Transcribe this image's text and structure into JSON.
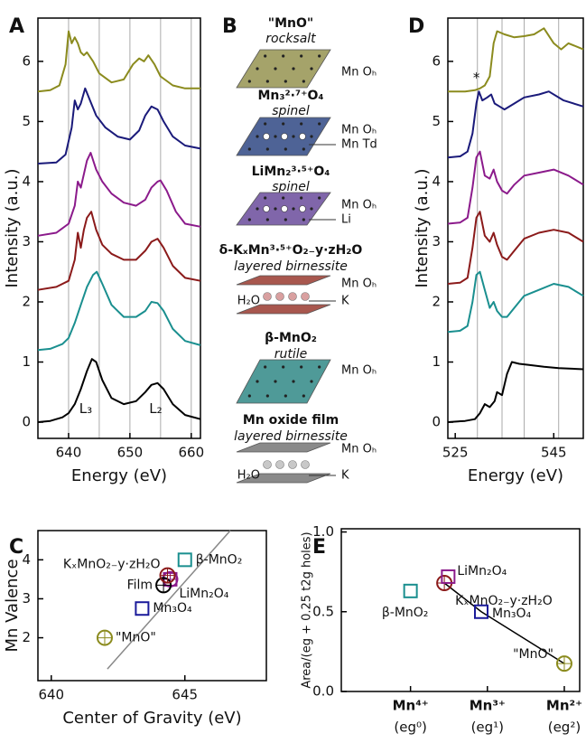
{
  "panel_labels": [
    "A",
    "B",
    "C",
    "D",
    "E"
  ],
  "chart_data": [
    {
      "type": "line",
      "xlabel": "Energy (eV)",
      "ylabel": "Intensity (a.u.)",
      "xlim": [
        635,
        661.5
      ],
      "ylim": [
        -0.27,
        6.72
      ],
      "xticks": [
        640,
        650,
        660
      ],
      "yticks": [
        0,
        1,
        2,
        3,
        4,
        5,
        6
      ],
      "xgrid": [
        640,
        645,
        650,
        655,
        660
      ],
      "series": [
        {
          "color": "#000000",
          "x": [
            635,
            637,
            639,
            640,
            641,
            642,
            643,
            643.8,
            644.5,
            645.5,
            647,
            649,
            651,
            652.5,
            653.5,
            654.5,
            655.5,
            657,
            659,
            661.5
          ],
          "y": [
            0,
            0.02,
            0.08,
            0.15,
            0.3,
            0.55,
            0.85,
            1.05,
            1.0,
            0.7,
            0.4,
            0.3,
            0.35,
            0.5,
            0.62,
            0.65,
            0.55,
            0.3,
            0.12,
            0.05
          ]
        },
        {
          "color": "#1a8f8f",
          "x": [
            635,
            637,
            639,
            640,
            641,
            642,
            643,
            644,
            644.6,
            645.5,
            647,
            649,
            651,
            652.5,
            653.5,
            654.5,
            655.5,
            657,
            659,
            661.5
          ],
          "y": [
            1.2,
            1.22,
            1.3,
            1.4,
            1.65,
            1.95,
            2.25,
            2.45,
            2.5,
            2.3,
            1.95,
            1.75,
            1.75,
            1.85,
            2.0,
            1.98,
            1.85,
            1.55,
            1.35,
            1.28
          ]
        },
        {
          "color": "#8b1a1a",
          "x": [
            635,
            638,
            640,
            641,
            641.5,
            642,
            642.5,
            643,
            643.7,
            644.5,
            645.5,
            647,
            649,
            651,
            652.5,
            653.5,
            654.5,
            655.5,
            657,
            659,
            661.5
          ],
          "y": [
            2.2,
            2.25,
            2.35,
            2.7,
            3.15,
            2.9,
            3.2,
            3.4,
            3.5,
            3.2,
            2.95,
            2.8,
            2.7,
            2.7,
            2.85,
            3.0,
            3.05,
            2.9,
            2.6,
            2.4,
            2.35
          ]
        },
        {
          "color": "#8b1a8b",
          "x": [
            635,
            638,
            640,
            641,
            641.5,
            642,
            643,
            643.6,
            644.5,
            645.5,
            647,
            649,
            651,
            652.5,
            653.5,
            654.5,
            655,
            656,
            657.5,
            659,
            661.5
          ],
          "y": [
            3.1,
            3.15,
            3.3,
            3.6,
            4.0,
            3.9,
            4.35,
            4.48,
            4.2,
            4.0,
            3.8,
            3.65,
            3.6,
            3.7,
            3.9,
            4.0,
            4.02,
            3.85,
            3.5,
            3.3,
            3.25
          ]
        },
        {
          "color": "#1a1a7a",
          "x": [
            635,
            638,
            639.5,
            640.5,
            641,
            641.5,
            642,
            642.7,
            643.5,
            644.5,
            646,
            648,
            650,
            651.5,
            652.5,
            653.5,
            654.5,
            655.5,
            657,
            659,
            661.5
          ],
          "y": [
            4.3,
            4.32,
            4.45,
            4.9,
            5.35,
            5.2,
            5.3,
            5.55,
            5.35,
            5.1,
            4.9,
            4.75,
            4.7,
            4.85,
            5.1,
            5.25,
            5.2,
            5.0,
            4.75,
            4.6,
            4.55
          ]
        },
        {
          "color": "#8b8b1e",
          "x": [
            635,
            637,
            638.5,
            639.5,
            640,
            640.5,
            641,
            641.5,
            642,
            642.5,
            643,
            644,
            645,
            647,
            649,
            650.5,
            651.5,
            652.3,
            653,
            654,
            655,
            657,
            659,
            661.5
          ],
          "y": [
            5.5,
            5.52,
            5.6,
            5.95,
            6.5,
            6.3,
            6.4,
            6.3,
            6.15,
            6.1,
            6.15,
            6.0,
            5.8,
            5.65,
            5.7,
            5.95,
            6.05,
            6.0,
            6.1,
            5.95,
            5.75,
            5.6,
            5.55,
            5.55
          ]
        }
      ],
      "annotations": [
        {
          "text": "L₃",
          "x": 642.8,
          "y": 0.22
        },
        {
          "text": "L₂",
          "x": 654.2,
          "y": 0.22
        }
      ]
    },
    {
      "type": "line",
      "xlabel": "Energy (eV)",
      "ylabel": "Intensity (a.u.)",
      "xlim": [
        523.5,
        551
      ],
      "ylim": [
        -0.27,
        6.72
      ],
      "xticks": [
        525,
        545
      ],
      "yticks": [
        0,
        1,
        2,
        3,
        4,
        5,
        6
      ],
      "xgrid": [
        529.5,
        534.5,
        539,
        546
      ],
      "series": [
        {
          "color": "#000000",
          "x": [
            523.5,
            527,
            529,
            530,
            531,
            532,
            533,
            533.5,
            534.5,
            535.5,
            536.5,
            538,
            540,
            543,
            546,
            551
          ],
          "y": [
            0,
            0.02,
            0.05,
            0.15,
            0.3,
            0.25,
            0.35,
            0.5,
            0.45,
            0.8,
            1.0,
            0.97,
            0.95,
            0.92,
            0.9,
            0.88
          ]
        },
        {
          "color": "#1a8f8f",
          "x": [
            523.5,
            526,
            527.5,
            528.5,
            529.3,
            530,
            531,
            532,
            532.8,
            533.5,
            534.5,
            535.5,
            537,
            539,
            542,
            545,
            548,
            551
          ],
          "y": [
            1.5,
            1.52,
            1.6,
            2.0,
            2.45,
            2.5,
            2.2,
            1.9,
            2.0,
            1.85,
            1.75,
            1.75,
            1.9,
            2.1,
            2.2,
            2.3,
            2.25,
            2.1
          ]
        },
        {
          "color": "#8b1a1a",
          "x": [
            523.5,
            526,
            527.5,
            528.5,
            529.3,
            530,
            531,
            532,
            532.8,
            533.5,
            534.5,
            535.5,
            537,
            539,
            542,
            545,
            548,
            551
          ],
          "y": [
            2.3,
            2.32,
            2.4,
            2.9,
            3.4,
            3.5,
            3.1,
            3.0,
            3.15,
            2.95,
            2.75,
            2.7,
            2.85,
            3.05,
            3.15,
            3.2,
            3.15,
            3.0
          ]
        },
        {
          "color": "#8b1a8b",
          "x": [
            523.5,
            526,
            527.5,
            528.5,
            529.3,
            530,
            531,
            532,
            532.8,
            533.5,
            534.5,
            535.5,
            537,
            539,
            542,
            545,
            548,
            551
          ],
          "y": [
            3.3,
            3.32,
            3.4,
            3.9,
            4.4,
            4.5,
            4.1,
            4.05,
            4.2,
            4.0,
            3.85,
            3.8,
            3.95,
            4.1,
            4.15,
            4.2,
            4.1,
            3.95
          ]
        },
        {
          "color": "#1a1a7a",
          "x": [
            523.5,
            526,
            527.5,
            528.5,
            529.3,
            529.8,
            530.5,
            531.5,
            532.3,
            533,
            534,
            535,
            537,
            539,
            542,
            544,
            547,
            551
          ],
          "y": [
            4.4,
            4.42,
            4.5,
            4.8,
            5.3,
            5.5,
            5.35,
            5.4,
            5.45,
            5.3,
            5.25,
            5.2,
            5.3,
            5.4,
            5.45,
            5.5,
            5.35,
            5.25
          ]
        },
        {
          "color": "#8b8b1e",
          "x": [
            523.5,
            527,
            529,
            530,
            531,
            532,
            532.8,
            533.5,
            535,
            537,
            539,
            541,
            543,
            545,
            546.5,
            548,
            551
          ],
          "y": [
            5.5,
            5.5,
            5.52,
            5.55,
            5.6,
            5.75,
            6.3,
            6.5,
            6.45,
            6.4,
            6.42,
            6.45,
            6.55,
            6.3,
            6.2,
            6.3,
            6.2
          ]
        }
      ],
      "annotations": [
        {
          "text": "*",
          "x": 529.3,
          "y": 5.72
        }
      ]
    },
    {
      "type": "scatter",
      "xlabel": "Center of Gravity (eV)",
      "ylabel": "Mn Valence",
      "xlim": [
        639.5,
        648.05
      ],
      "ylim": [
        0.9,
        4.75
      ],
      "xticks": [
        640,
        645
      ],
      "yticks": [
        2,
        3,
        4
      ],
      "fit_line": {
        "color": "#888888",
        "x": [
          642.1,
          646.7
        ],
        "y": [
          1.2,
          4.75
        ]
      },
      "series": [
        {
          "name": "\"MnO\"",
          "color": "#8b8b1e",
          "marker": "circle",
          "x": 642.0,
          "y": 2.0
        },
        {
          "name": "Mn₃O₄",
          "color": "#1a1a9a",
          "marker": "square",
          "x": 643.4,
          "y": 2.75
        },
        {
          "name": "LiMn₂O₄",
          "color": "#8b1a8b",
          "marker": "square+circle",
          "x": 644.45,
          "y": 3.5
        },
        {
          "name": "Film",
          "color": "#000000",
          "marker": "circle",
          "x": 644.2,
          "y": 3.35
        },
        {
          "name": "KₓMnO₂₋y·zH₂O",
          "color": "#8b1a1a",
          "marker": "circle",
          "x": 644.35,
          "y": 3.6
        },
        {
          "name": "β-MnO₂",
          "color": "#1a8f8f",
          "marker": "square",
          "x": 645.0,
          "y": 4.0
        }
      ]
    },
    {
      "type": "scatter",
      "ylabel": "Area/(eg + 0.25 t2g holes)",
      "xlim": [
        -0.9,
        2.2
      ],
      "ylim": [
        0,
        1.02
      ],
      "xticks": [
        {
          "value": 0,
          "label": "Mn⁴⁺"
        },
        {
          "value": 1,
          "label": "Mn³⁺"
        },
        {
          "value": 2,
          "label": "Mn²⁺"
        }
      ],
      "xtick_sublabels": [
        "(eg⁰)",
        "(eg¹)",
        "(eg²)"
      ],
      "yticks": [
        {
          "value": 0,
          "label": "0.0"
        },
        {
          "value": 0.5,
          "label": "0.5"
        },
        {
          "value": 1,
          "label": "1.0"
        }
      ],
      "fit_line": {
        "color": "#000000",
        "x": [
          0.44,
          0.92,
          2
        ],
        "y": [
          0.68,
          0.5,
          0.175
        ]
      },
      "series": [
        {
          "name": "β-MnO₂",
          "color": "#1a8f8f",
          "marker": "square",
          "x": 0,
          "y": 0.63
        },
        {
          "name": "KₓMnO₂₋y·zH₂O",
          "color": "#8b1a1a",
          "marker": "circle",
          "x": 0.44,
          "y": 0.68
        },
        {
          "name": "LiMn₂O₄",
          "color": "#8b1a8b",
          "marker": "square",
          "x": 0.49,
          "y": 0.72
        },
        {
          "name": "Mn₃O₄",
          "color": "#1a1a9a",
          "marker": "square",
          "x": 0.92,
          "y": 0.5
        },
        {
          "name": "\"MnO\"",
          "color": "#8b8b1e",
          "marker": "circle",
          "x": 2,
          "y": 0.175
        }
      ]
    }
  ],
  "panel_b": {
    "structures": [
      {
        "title": "\"MnO\"",
        "subtitle": "rocksalt",
        "sites": [
          "Mn Oₕ"
        ],
        "color": "#8b8b1e",
        "slab": "#a5a36a"
      },
      {
        "title": "Mn₃²·⁷⁺O₄",
        "subtitle": "spinel",
        "sites": [
          "Mn Oₕ",
          "Mn Td"
        ],
        "color": "#1a1a7a",
        "slab": "#4e6396"
      },
      {
        "title": "LiMn₂³·⁵⁺O₄",
        "subtitle": "spinel",
        "sites": [
          "Mn Oₕ",
          "Li"
        ],
        "color": "#8b1a8b",
        "slab": "#8066aa"
      },
      {
        "title": "δ-KₓMn³·⁵⁺O₂₋y·zH₂O",
        "subtitle": "layered birnessite",
        "sites": [
          "Mn Oₕ",
          "K"
        ],
        "interlayer": "H₂O",
        "color": "#8b1a1a",
        "slab": "#a8574e"
      },
      {
        "title": "β-MnO₂",
        "subtitle": "rutile",
        "sites": [
          "Mn Oₕ"
        ],
        "color": "#1a8f8f",
        "slab": "#4f9a98"
      },
      {
        "title": "Mn oxide film",
        "subtitle": "layered birnessite",
        "sites": [
          "Mn Oₕ",
          "K"
        ],
        "interlayer": "H₂O",
        "color": "#000000",
        "slab": "#8a8a8a"
      }
    ]
  }
}
